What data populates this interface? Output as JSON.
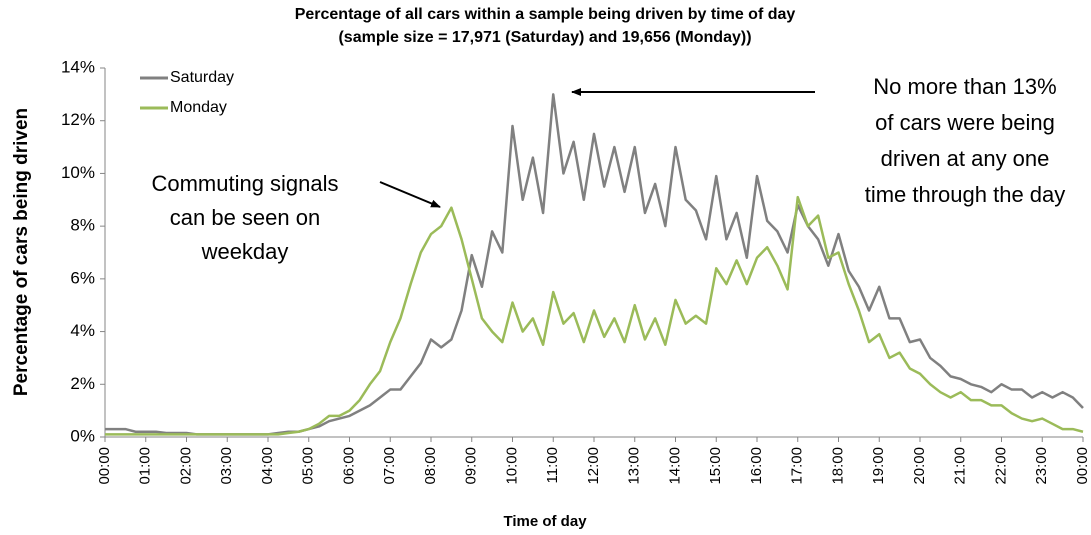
{
  "chart_data": {
    "type": "line",
    "title": "Percentage of all cars within a sample being driven by time of day",
    "subtitle": "(sample size = 17,971 (Saturday) and 19,656 (Monday))",
    "x_label": "Time of day",
    "y_label": "Percentage of cars being driven",
    "categories": [
      "00:00",
      null,
      null,
      null,
      "01:00",
      null,
      null,
      null,
      "02:00",
      null,
      null,
      null,
      "03:00",
      null,
      null,
      null,
      "04:00",
      null,
      null,
      null,
      "05:00",
      null,
      null,
      null,
      "06:00",
      null,
      null,
      null,
      "07:00",
      null,
      null,
      null,
      "08:00",
      null,
      null,
      null,
      "09:00",
      null,
      null,
      null,
      "10:00",
      null,
      null,
      null,
      "11:00",
      null,
      null,
      null,
      "12:00",
      null,
      null,
      null,
      "13:00",
      null,
      null,
      null,
      "14:00",
      null,
      null,
      null,
      "15:00",
      null,
      null,
      null,
      "16:00",
      null,
      null,
      null,
      "17:00",
      null,
      null,
      null,
      "18:00",
      null,
      null,
      null,
      "19:00",
      null,
      null,
      null,
      "20:00",
      null,
      null,
      null,
      "21:00",
      null,
      null,
      null,
      "22:00",
      null,
      null,
      null,
      "23:00",
      null,
      null,
      null,
      "00:00"
    ],
    "series": [
      {
        "name": "Saturday",
        "color": "#808080",
        "values": [
          0.3,
          0.3,
          0.3,
          0.2,
          0.2,
          0.2,
          0.15,
          0.15,
          0.15,
          0.1,
          0.1,
          0.1,
          0.1,
          0.1,
          0.1,
          0.1,
          0.1,
          0.15,
          0.2,
          0.2,
          0.3,
          0.4,
          0.6,
          0.7,
          0.8,
          1.0,
          1.2,
          1.5,
          1.8,
          1.8,
          2.3,
          2.8,
          3.7,
          3.4,
          3.7,
          4.8,
          6.9,
          5.7,
          7.8,
          7.0,
          11.8,
          9.0,
          10.6,
          8.5,
          13.0,
          10.0,
          11.2,
          9.0,
          11.5,
          9.5,
          11.0,
          9.3,
          11.0,
          8.5,
          9.6,
          8.0,
          11.0,
          9.0,
          8.6,
          7.5,
          9.9,
          7.5,
          8.5,
          6.8,
          9.9,
          8.2,
          7.8,
          7.0,
          8.8,
          8.0,
          7.5,
          6.5,
          7.7,
          6.3,
          5.7,
          4.8,
          5.7,
          4.5,
          4.5,
          3.6,
          3.7,
          3.0,
          2.7,
          2.3,
          2.2,
          2.0,
          1.9,
          1.7,
          2.0,
          1.8,
          1.8,
          1.5,
          1.7,
          1.5,
          1.7,
          1.5,
          1.1
        ]
      },
      {
        "name": "Monday",
        "color": "#9bbb59",
        "values": [
          0.1,
          0.1,
          0.1,
          0.1,
          0.1,
          0.1,
          0.1,
          0.1,
          0.1,
          0.1,
          0.1,
          0.1,
          0.1,
          0.1,
          0.1,
          0.1,
          0.1,
          0.1,
          0.15,
          0.2,
          0.3,
          0.5,
          0.8,
          0.8,
          1.0,
          1.4,
          2.0,
          2.5,
          3.6,
          4.5,
          5.8,
          7.0,
          7.7,
          8.0,
          8.7,
          7.5,
          6.0,
          4.5,
          4.0,
          3.6,
          5.1,
          4.0,
          4.5,
          3.5,
          5.5,
          4.3,
          4.7,
          3.6,
          4.8,
          3.8,
          4.5,
          3.6,
          5.0,
          3.7,
          4.5,
          3.5,
          5.2,
          4.3,
          4.6,
          4.3,
          6.4,
          5.8,
          6.7,
          5.8,
          6.8,
          7.2,
          6.5,
          5.6,
          9.1,
          8.0,
          8.4,
          6.8,
          7.0,
          5.8,
          4.8,
          3.6,
          3.9,
          3.0,
          3.2,
          2.6,
          2.4,
          2.0,
          1.7,
          1.5,
          1.7,
          1.4,
          1.4,
          1.2,
          1.2,
          0.9,
          0.7,
          0.6,
          0.7,
          0.5,
          0.3,
          0.3,
          0.2
        ]
      }
    ],
    "ylim": [
      0,
      14
    ],
    "yticks": [
      {
        "value": 0,
        "label": "0%"
      },
      {
        "value": 2,
        "label": "2%"
      },
      {
        "value": 4,
        "label": "4%"
      },
      {
        "value": 6,
        "label": "6%"
      },
      {
        "value": 8,
        "label": "8%"
      },
      {
        "value": 10,
        "label": "10%"
      },
      {
        "value": 12,
        "label": "12%"
      },
      {
        "value": 14,
        "label": "14%"
      }
    ],
    "grid": false,
    "legend": "top-left",
    "annotations": [
      [
        "Commuting signals",
        "can be seen on",
        "weekday"
      ],
      [
        "No more than 13%",
        "of cars were being",
        "driven at any one",
        "time through the day"
      ]
    ]
  }
}
